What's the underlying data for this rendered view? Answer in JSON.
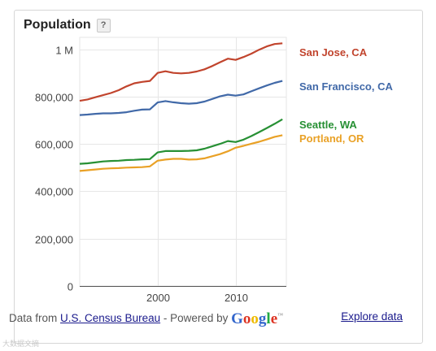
{
  "header": {
    "title": "Population",
    "help_label": "?"
  },
  "footer": {
    "prefix": "Data from ",
    "source_link": "U.S. Census Bureau",
    "separator": " - Powered by ",
    "google": "Google",
    "tm": "™",
    "explore": "Explore data"
  },
  "watermark": "大数据文摘",
  "chart_data": {
    "type": "line",
    "title": "Population",
    "xlabel": "",
    "ylabel": "",
    "xlim": [
      1990,
      2016.5
    ],
    "ylim": [
      0,
      1050000
    ],
    "x_ticks": [
      2000,
      2010
    ],
    "x_tick_labels": [
      "2000",
      "2010"
    ],
    "y_ticks": [
      0,
      200000,
      400000,
      600000,
      800000,
      1000000
    ],
    "y_tick_labels": [
      "0",
      "200,000",
      "400,000",
      "600,000",
      "800,000",
      "1 M"
    ],
    "grid": true,
    "legend": "right, at line ends",
    "x": [
      1990,
      1991,
      1992,
      1993,
      1994,
      1995,
      1996,
      1997,
      1998,
      1999,
      2000,
      2001,
      2002,
      2003,
      2004,
      2005,
      2006,
      2007,
      2008,
      2009,
      2010,
      2011,
      2012,
      2013,
      2014,
      2015,
      2016
    ],
    "series": [
      {
        "name": "San Jose, CA",
        "color": "#c1442d",
        "values": [
          782000,
          788000,
          797000,
          806000,
          815000,
          827000,
          843000,
          856000,
          862000,
          866000,
          900000,
          907000,
          900000,
          898000,
          900000,
          906000,
          915000,
          929000,
          945000,
          960000,
          955000,
          967000,
          981000,
          998000,
          1012000,
          1022000,
          1025000
        ]
      },
      {
        "name": "San Francisco, CA",
        "color": "#4169a8",
        "values": [
          722000,
          724000,
          727000,
          729000,
          729000,
          731000,
          734000,
          740000,
          745000,
          746000,
          775000,
          781000,
          776000,
          772000,
          770000,
          772000,
          779000,
          790000,
          801000,
          808000,
          804000,
          809000,
          822000,
          835000,
          847000,
          858000,
          866000
        ]
      },
      {
        "name": "Seattle, WA",
        "color": "#279034",
        "values": [
          516000,
          518000,
          522000,
          526000,
          528000,
          529000,
          532000,
          533000,
          535000,
          536000,
          564000,
          570000,
          570000,
          570000,
          571000,
          573000,
          580000,
          590000,
          600000,
          612000,
          608000,
          618000,
          633000,
          650000,
          667000,
          685000,
          704000
        ]
      },
      {
        "name": "Portland, OR",
        "color": "#e9a126",
        "values": [
          486000,
          489000,
          492000,
          495000,
          497000,
          498000,
          500000,
          501000,
          502000,
          505000,
          529000,
          534000,
          537000,
          537000,
          534000,
          535000,
          539000,
          548000,
          557000,
          569000,
          584000,
          592000,
          601000,
          609000,
          619000,
          630000,
          637000
        ]
      }
    ]
  }
}
